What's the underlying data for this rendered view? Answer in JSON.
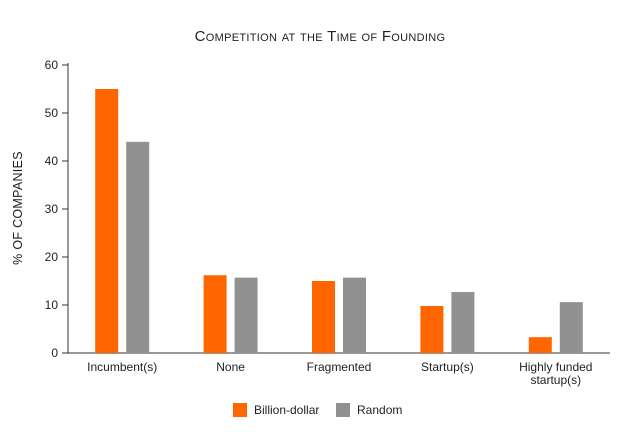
{
  "chart_data": {
    "type": "bar",
    "title": "Competition at the Time of Founding",
    "xlabel": "",
    "ylabel": "% OF COMPANIES",
    "ylim": [
      0,
      60
    ],
    "yticks": [
      0,
      10,
      20,
      30,
      40,
      50,
      60
    ],
    "categories": [
      [
        "Incumbent(s)"
      ],
      [
        "None"
      ],
      [
        "Fragmented"
      ],
      [
        "Startup(s)"
      ],
      [
        "Highly funded",
        "startup(s)"
      ]
    ],
    "series": [
      {
        "name": "Billion-dollar",
        "color": "#ff6600",
        "values": [
          55,
          16.2,
          15,
          9.8,
          3.3
        ]
      },
      {
        "name": "Random",
        "color": "#919191",
        "values": [
          44,
          15.7,
          15.7,
          12.7,
          10.6
        ]
      }
    ],
    "grid": false,
    "legend": "bottom-center"
  }
}
